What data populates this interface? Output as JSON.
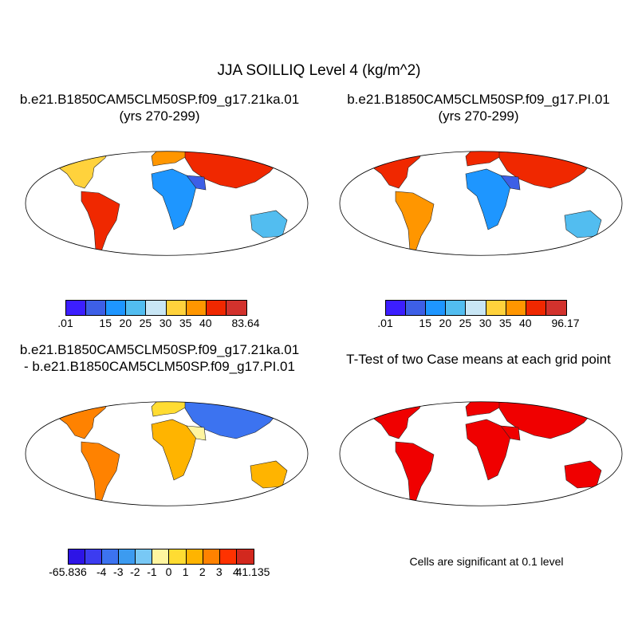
{
  "figure": {
    "title": "JJA SOILLIQ Level 4 (kg/m^2)"
  },
  "panels": [
    {
      "id": "tl",
      "title_line1": "b.e21.B1850CAM5CLM50SP.f09_g17.21ka.01",
      "title_line2": "(yrs 270-299)",
      "colorbar": {
        "colors": [
          "#3c1eff",
          "#3d5fe6",
          "#1e96ff",
          "#52bdf0",
          "#c8e6f5",
          "#ffd23c",
          "#ff9600",
          "#f02800",
          "#d2322d"
        ],
        "tick_labels": [
          ".01",
          "15",
          "20",
          "25",
          "30",
          "35",
          "40",
          "83.64"
        ]
      }
    },
    {
      "id": "tr",
      "title_line1": "b.e21.B1850CAM5CLM50SP.f09_g17.PI.01",
      "title_line2": "(yrs 270-299)",
      "colorbar": {
        "colors": [
          "#3c1eff",
          "#3d5fe6",
          "#1e96ff",
          "#52bdf0",
          "#c8e6f5",
          "#ffd23c",
          "#ff9600",
          "#f02800",
          "#d2322d"
        ],
        "tick_labels": [
          ".01",
          "15",
          "20",
          "25",
          "30",
          "35",
          "40",
          "96.17"
        ]
      }
    },
    {
      "id": "bl",
      "title_line1": "b.e21.B1850CAM5CLM50SP.f09_g17.21ka.01",
      "title_line2": "- b.e21.B1850CAM5CLM50SP.f09_g17.PI.01",
      "colorbar": {
        "colors": [
          "#2d14e6",
          "#3c3cf0",
          "#3c73f0",
          "#3c9bf0",
          "#78c8f5",
          "#fff5a0",
          "#ffdc32",
          "#ffb400",
          "#ff8200",
          "#ff3200",
          "#d2281e"
        ],
        "tick_labels": [
          "-65.836",
          "-4",
          "-3",
          "-2",
          "-1",
          "0",
          "1",
          "2",
          "3",
          "4",
          "41.135"
        ]
      }
    },
    {
      "id": "br",
      "title_line1": "T-Test of two Case means at each grid point",
      "note": "Cells are significant at 0.1 level",
      "fill_color": "#f00000"
    }
  ]
}
